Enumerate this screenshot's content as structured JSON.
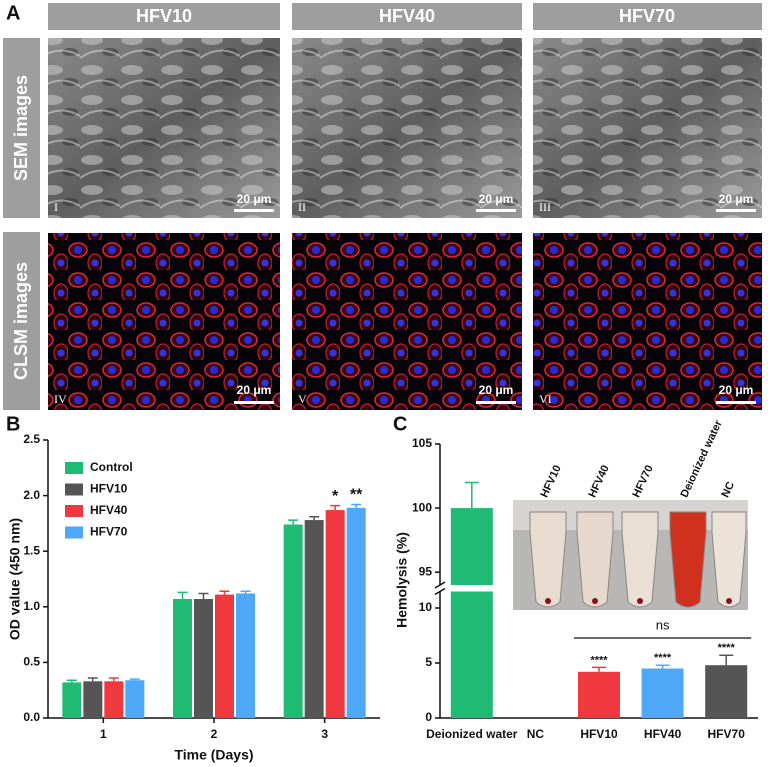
{
  "panel_labels": [
    "A",
    "B",
    "C"
  ],
  "figure_a": {
    "columns": [
      "HFV10",
      "HFV40",
      "HFV70"
    ],
    "rows": [
      "SEM images",
      "CLSM images"
    ],
    "image_labels": [
      [
        "I",
        "II",
        "III"
      ],
      [
        "IV",
        "V",
        "VI"
      ]
    ],
    "scale_bar": "20 μm"
  },
  "chart_data": [
    {
      "type": "bar",
      "xlabel": "Time (Days)",
      "ylabel": "OD value (450 nm)",
      "categories": [
        "1",
        "2",
        "3"
      ],
      "series": [
        {
          "name": "Control",
          "color": "#1fba74",
          "values": [
            0.32,
            1.07,
            1.74
          ],
          "errors": [
            0.02,
            0.06,
            0.04
          ]
        },
        {
          "name": "HFV10",
          "color": "#555555",
          "values": [
            0.33,
            1.07,
            1.78
          ],
          "errors": [
            0.03,
            0.05,
            0.03
          ]
        },
        {
          "name": "HFV40",
          "color": "#f0393f",
          "values": [
            0.33,
            1.11,
            1.87
          ],
          "errors": [
            0.03,
            0.03,
            0.04
          ],
          "significance": [
            null,
            null,
            "*"
          ]
        },
        {
          "name": "HFV70",
          "color": "#4ea8f7",
          "values": [
            0.34,
            1.12,
            1.89
          ],
          "errors": [
            0.01,
            0.02,
            0.03
          ],
          "significance": [
            null,
            null,
            "**"
          ]
        }
      ],
      "ylim": [
        0,
        2.5
      ],
      "yticks": [
        {
          "value": 0,
          "label": "0.0"
        },
        0.5,
        {
          "value": 1,
          "label": "1.0"
        },
        1.5,
        {
          "value": 2,
          "label": "2.0"
        },
        2.5
      ],
      "legend": "upper left"
    },
    {
      "type": "broken-bar",
      "ylabel": "Hemolysis (%)",
      "categories": [
        "Deionized water",
        "NC",
        "HFV10",
        "HFV40",
        "HFV70"
      ],
      "values": [
        100,
        0,
        4.2,
        4.5,
        4.8
      ],
      "errors": [
        2,
        0,
        0.4,
        0.3,
        0.9
      ],
      "colors": [
        "#1fba74",
        null,
        "#f0393f",
        "#4ea8f7",
        "#555555"
      ],
      "significance": [
        null,
        null,
        "****",
        "****",
        "****"
      ],
      "bracket_label": "ns",
      "ylim": [
        0,
        105
      ],
      "ybreak": [
        11.5,
        94
      ],
      "yticks": [
        0,
        5,
        10,
        95,
        100,
        105
      ],
      "inset_labels": [
        "HFV10",
        "HFV40",
        "HFV70",
        "Deionized water",
        "NC"
      ]
    }
  ]
}
